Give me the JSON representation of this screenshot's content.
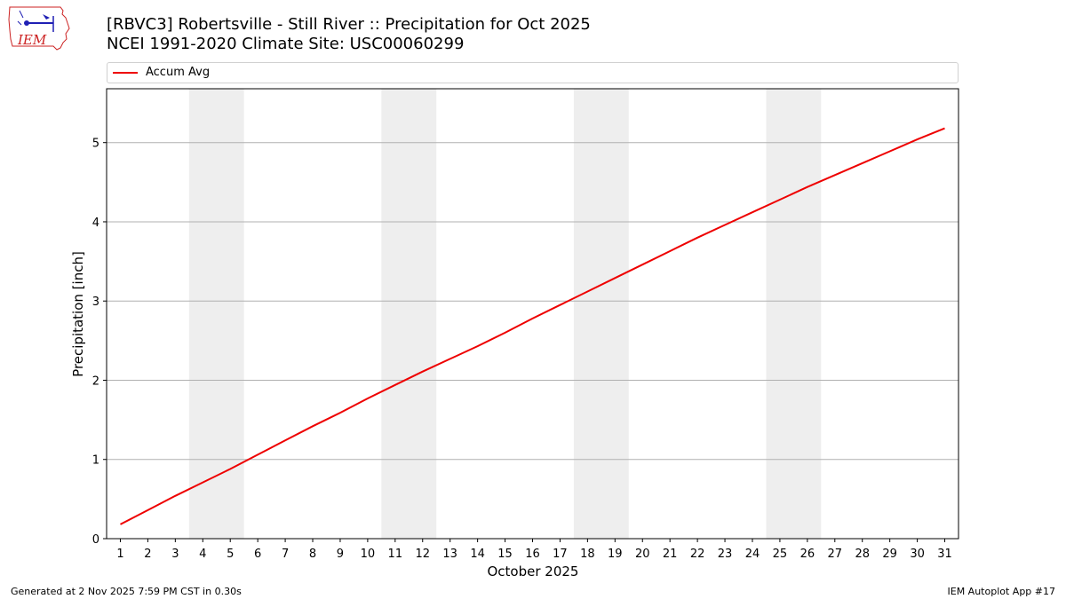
{
  "header": {
    "title_line1": "[RBVC3] Robertsville - Still River :: Precipitation for Oct 2025",
    "title_line2": "NCEI 1991-2020 Climate Site: USC00060299",
    "logo_text": "IEM"
  },
  "footer": {
    "left": "Generated at 2 Nov 2025 7:59 PM CST in 0.30s",
    "right": "IEM Autoplot App #17"
  },
  "colors": {
    "series": "#ee0000",
    "weekend_band": "#eeeeee",
    "grid": "#b0b0b0",
    "logo_red": "#cc2222",
    "logo_blue": "#1f1fb4"
  },
  "chart_data": {
    "type": "line",
    "xlabel": "October 2025",
    "ylabel": "Precipitation [inch]",
    "xlim": [
      0.5,
      31.5
    ],
    "ylim": [
      0,
      5.68
    ],
    "x_ticks": [
      1,
      2,
      3,
      4,
      5,
      6,
      7,
      8,
      9,
      10,
      11,
      12,
      13,
      14,
      15,
      16,
      17,
      18,
      19,
      20,
      21,
      22,
      23,
      24,
      25,
      26,
      27,
      28,
      29,
      30,
      31
    ],
    "y_ticks": [
      0,
      1,
      2,
      3,
      4,
      5
    ],
    "grid": "y-major",
    "legend_position": "top",
    "shaded_ranges": [
      [
        3.5,
        5.5
      ],
      [
        10.5,
        12.5
      ],
      [
        17.5,
        19.5
      ],
      [
        24.5,
        26.5
      ]
    ],
    "series": [
      {
        "name": "Accum Avg",
        "x": [
          1,
          2,
          3,
          4,
          5,
          6,
          7,
          8,
          9,
          10,
          11,
          12,
          13,
          14,
          15,
          16,
          17,
          18,
          19,
          20,
          21,
          22,
          23,
          24,
          25,
          26,
          27,
          28,
          29,
          30,
          31
        ],
        "y": [
          0.18,
          0.36,
          0.54,
          0.71,
          0.88,
          1.06,
          1.24,
          1.42,
          1.59,
          1.77,
          1.94,
          2.11,
          2.27,
          2.43,
          2.6,
          2.78,
          2.95,
          3.12,
          3.29,
          3.46,
          3.63,
          3.8,
          3.96,
          4.12,
          4.28,
          4.44,
          4.59,
          4.74,
          4.89,
          5.04,
          5.18
        ]
      }
    ]
  }
}
